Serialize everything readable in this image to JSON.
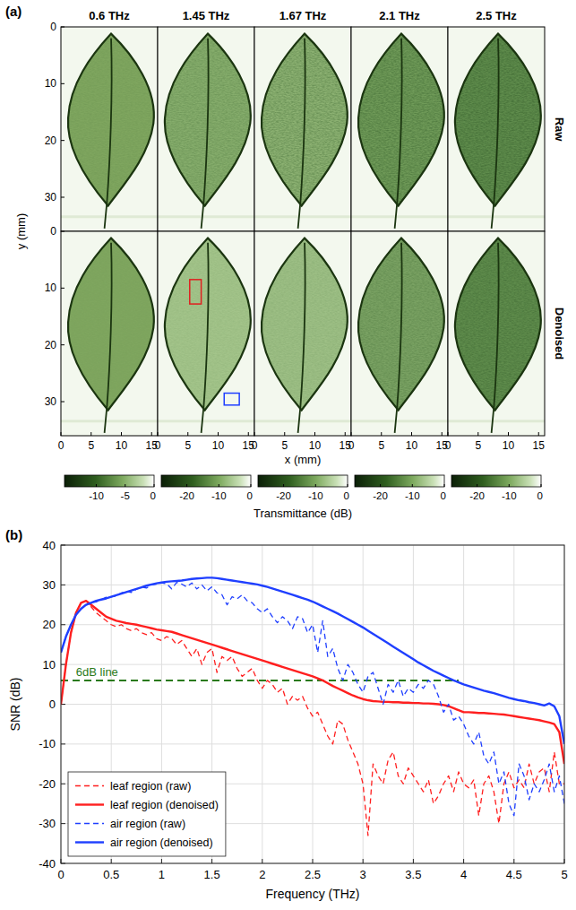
{
  "chart_data": [
    {
      "type": "heatmap",
      "panel_label": "(a)",
      "columns": [
        "0.6 THz",
        "1.45 THz",
        "1.67 THz",
        "2.1 THz",
        "2.5 THz"
      ],
      "rows": [
        "Raw",
        "Denoised"
      ],
      "xlabel": "x (mm)",
      "ylabel": "y (mm)",
      "xlim": [
        0,
        16
      ],
      "xticks": [
        0,
        5,
        10,
        15
      ],
      "ylim": [
        0,
        36
      ],
      "yticks": [
        0,
        10,
        20,
        30
      ],
      "colorbar_label": "Transmittance (dB)",
      "colorbars": [
        {
          "range": [
            -15.5,
            0
          ],
          "ticks": [
            -10,
            -5,
            0
          ]
        },
        {
          "range": [
            -28,
            0
          ],
          "ticks": [
            -20,
            -10,
            0
          ]
        },
        {
          "range": [
            -28,
            0
          ],
          "ticks": [
            -20,
            -10,
            0
          ]
        },
        {
          "range": [
            -28,
            0
          ],
          "ticks": [
            -20,
            -10,
            0
          ]
        },
        {
          "range": [
            -28,
            0
          ],
          "ticks": [
            -20,
            -10,
            0
          ]
        }
      ],
      "boxes": [
        {
          "column": 1,
          "row": 1,
          "color": "#e02020",
          "x": [
            5.3,
            7.2
          ],
          "y": [
            8.5,
            12.8
          ]
        },
        {
          "column": 1,
          "row": 1,
          "color": "#1f3fff",
          "x": [
            11,
            13.5
          ],
          "y": [
            28.5,
            30.6
          ]
        }
      ]
    },
    {
      "type": "line",
      "panel_label": "(b)",
      "xlabel": "Frequency (THz)",
      "ylabel": "SNR (dB)",
      "xlim": [
        0,
        5
      ],
      "xticks": [
        0,
        0.5,
        1,
        1.5,
        2,
        2.5,
        3,
        3.5,
        4,
        4.5,
        5
      ],
      "ylim": [
        -40,
        40
      ],
      "yticks": [
        -40,
        -30,
        -20,
        -10,
        0,
        10,
        20,
        30,
        40
      ],
      "grid": true,
      "legend": "lower left",
      "x": [
        0,
        0.05,
        0.1,
        0.15,
        0.2,
        0.25,
        0.3,
        0.35,
        0.4,
        0.45,
        0.5,
        0.55,
        0.6,
        0.65,
        0.7,
        0.75,
        0.8,
        0.85,
        0.9,
        0.95,
        1,
        1.05,
        1.1,
        1.15,
        1.2,
        1.25,
        1.3,
        1.35,
        1.4,
        1.45,
        1.5,
        1.55,
        1.6,
        1.65,
        1.7,
        1.75,
        1.8,
        1.85,
        1.9,
        1.95,
        2,
        2.05,
        2.1,
        2.15,
        2.2,
        2.25,
        2.3,
        2.35,
        2.4,
        2.45,
        2.5,
        2.55,
        2.6,
        2.65,
        2.7,
        2.75,
        2.8,
        2.85,
        2.9,
        2.95,
        3,
        3.05,
        3.1,
        3.15,
        3.2,
        3.25,
        3.3,
        3.35,
        3.4,
        3.45,
        3.5,
        3.55,
        3.6,
        3.65,
        3.7,
        3.75,
        3.8,
        3.85,
        3.9,
        3.95,
        4,
        4.05,
        4.1,
        4.15,
        4.2,
        4.25,
        4.3,
        4.35,
        4.4,
        4.45,
        4.5,
        4.55,
        4.6,
        4.65,
        4.7,
        4.75,
        4.8,
        4.85,
        4.9,
        4.95,
        5
      ],
      "series": [
        {
          "name": "leaf region (raw)",
          "color": "#ff1f1f",
          "line_style": "dashed",
          "values": [
            0,
            10,
            18,
            23,
            25.5,
            26,
            24.5,
            23,
            22,
            21,
            20,
            19.5,
            20,
            19,
            18.5,
            19,
            18,
            17.5,
            18,
            16.5,
            16,
            17,
            16.5,
            15,
            16,
            14,
            12,
            14,
            10,
            13,
            14,
            8,
            12,
            11,
            12,
            9,
            7,
            8,
            9,
            6,
            4,
            6,
            5,
            3,
            4,
            0,
            2,
            1,
            2,
            -1,
            -3,
            -2,
            -5,
            -8,
            -10,
            -4,
            -5,
            -9,
            -12,
            -15,
            -20,
            -33,
            -15,
            -18,
            -20,
            -14,
            -12,
            -18,
            -20,
            -16,
            -18,
            -20,
            -22,
            -19,
            -25,
            -23,
            -20,
            -18,
            -22,
            -17,
            -20,
            -21,
            -19,
            -28,
            -20,
            -18,
            -22,
            -30,
            -20,
            -17,
            -21,
            -19,
            -21,
            -15,
            -20,
            -17,
            -16,
            -22,
            -12,
            -20,
            -20
          ]
        },
        {
          "name": "leaf region (denoised)",
          "color": "#ff1f1f",
          "line_style": "solid",
          "values": [
            0,
            10,
            18,
            23,
            25.5,
            26,
            25,
            24,
            23,
            22,
            21.5,
            21,
            20.7,
            20.4,
            20.2,
            20,
            19.7,
            19.4,
            19.1,
            18.8,
            18.6,
            18.4,
            18.2,
            17.8,
            17.4,
            17,
            16.6,
            16.2,
            15.8,
            15.4,
            15,
            14.6,
            14.2,
            13.8,
            13.4,
            13,
            12.6,
            12.2,
            11.8,
            11.4,
            11,
            10.6,
            10.2,
            9.8,
            9.4,
            9,
            8.6,
            8.2,
            7.8,
            7.4,
            7,
            6.5,
            6,
            5.3,
            4.6,
            4,
            3.4,
            2.8,
            2.2,
            1.7,
            1.3,
            1,
            0.8,
            0.7,
            0.6,
            0.6,
            0.5,
            0.5,
            0.4,
            0.4,
            0.3,
            0.3,
            0.2,
            0.2,
            0.1,
            0,
            -0.2,
            -0.5,
            -1,
            -1.5,
            -2,
            -2,
            -2.1,
            -2.2,
            -2.2,
            -2.3,
            -2.4,
            -2.5,
            -2.6,
            -2.8,
            -3,
            -3.2,
            -3.4,
            -3.6,
            -3.8,
            -4,
            -4.3,
            -4.6,
            -5,
            -7,
            -15
          ]
        },
        {
          "name": "air region (raw)",
          "color": "#1f3fff",
          "line_style": "dashed",
          "values": [
            13,
            17,
            20,
            22.5,
            24,
            25,
            25.5,
            25.7,
            26.3,
            26.9,
            27,
            27.2,
            28,
            28.4,
            28.1,
            28.9,
            29.5,
            29.2,
            30,
            30.2,
            30.5,
            30.3,
            29,
            30.6,
            30.2,
            29.5,
            30.5,
            29,
            30,
            28.5,
            29.5,
            28,
            27.5,
            25,
            27,
            26.5,
            27.5,
            26,
            25.5,
            24,
            23,
            24,
            22,
            20.5,
            22,
            21,
            19,
            22,
            21.5,
            18,
            20,
            13,
            21,
            12,
            14,
            9,
            6,
            10,
            8,
            5,
            3,
            7,
            8,
            4,
            0,
            5,
            3,
            6,
            2,
            4,
            3,
            5,
            4,
            6,
            5,
            2,
            -2,
            0,
            -4,
            -3,
            -5,
            -8,
            -10,
            -7,
            -13,
            -15,
            -12,
            -20,
            -17,
            -25,
            -28,
            -15,
            -18,
            -24,
            -20,
            -22,
            -19,
            -15,
            -22,
            -18,
            -25
          ]
        },
        {
          "name": "air region (denoised)",
          "color": "#1f3fff",
          "line_style": "solid",
          "values": [
            13,
            17,
            20,
            22.5,
            24,
            25,
            25.5,
            26,
            26.3,
            26.6,
            27,
            27.4,
            27.8,
            28.2,
            28.6,
            29,
            29.4,
            29.8,
            30.1,
            30.4,
            30.6,
            30.8,
            30.9,
            31,
            31.1,
            31.3,
            31.5,
            31.6,
            31.7,
            31.8,
            31.8,
            31.7,
            31.5,
            31.3,
            31.1,
            30.9,
            30.7,
            30.5,
            30.3,
            30.1,
            29.8,
            29.5,
            29.1,
            28.7,
            28.3,
            27.9,
            27.5,
            27.1,
            26.7,
            26.3,
            25.8,
            25.2,
            24.6,
            24,
            23.4,
            22.8,
            22.1,
            21.4,
            20.7,
            20,
            19.3,
            18.5,
            17.7,
            16.9,
            16.1,
            15.3,
            14.5,
            13.7,
            12.9,
            12.1,
            11.3,
            10.5,
            9.8,
            9.1,
            8.4,
            7.8,
            7.2,
            6.6,
            6,
            5.5,
            5,
            4.6,
            4.2,
            3.8,
            3.4,
            3.1,
            2.8,
            2.4,
            2,
            1.6,
            1.3,
            1,
            0.8,
            0.5,
            0.3,
            0,
            -0.3,
            0.2,
            -0.5,
            -3,
            -10
          ]
        }
      ],
      "reference_line": {
        "label": "6dB line",
        "y": 6,
        "x": [
          0,
          3.95
        ],
        "color": "#2a7a1a",
        "line_style": "dashed"
      }
    }
  ]
}
